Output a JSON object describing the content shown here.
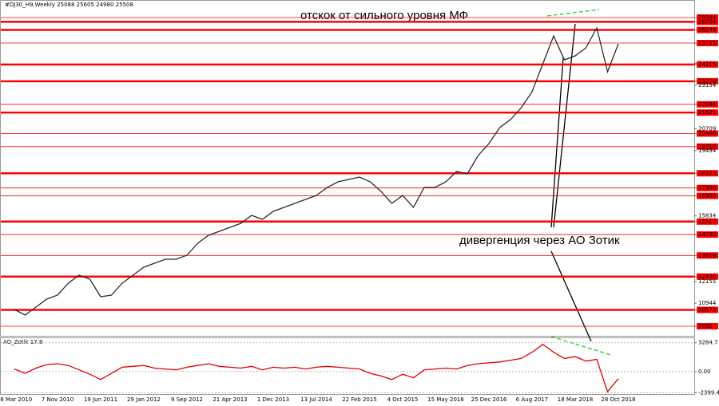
{
  "chart_data": [
    {
      "type": "line",
      "title": "#DJ30_H9,Weekly  25088 25605 24980 25508",
      "annotations": [
        "отскок от сильного уровня МФ",
        "дивергенция через АО Зотик"
      ],
      "categories": [
        "28 Mar 2010",
        null,
        null,
        null,
        "7 Nov 2010",
        null,
        null,
        null,
        "19 Jun 2011",
        null,
        null,
        null,
        "29 Jan 2012",
        null,
        null,
        null,
        "9 Sep 2012",
        null,
        null,
        null,
        "21 Apr 2013",
        null,
        null,
        null,
        "1 Dec 2013",
        null,
        null,
        null,
        "13 Jul 2014",
        null,
        null,
        null,
        "22 Feb 2015",
        null,
        null,
        null,
        "4 Oct 2015",
        null,
        null,
        null,
        "15 May 2016",
        null,
        null,
        null,
        "25 Dec 2016",
        null,
        null,
        null,
        "6 Aug 2017",
        null,
        null,
        null,
        "18 Mar 2018",
        null,
        null,
        null,
        "28 Oct 2018"
      ],
      "values": [
        10595,
        10282,
        10729,
        11175,
        11399,
        12069,
        12516,
        12292,
        11309,
        11399,
        12069,
        12516,
        12962,
        13186,
        13409,
        13409,
        13632,
        14302,
        14749,
        14972,
        15196,
        15419,
        15866,
        15642,
        16089,
        16313,
        16536,
        16759,
        16983,
        17429,
        17742,
        17876,
        18010,
        17742,
        17206,
        16536,
        16983,
        16313,
        17429,
        17429,
        17742,
        18323,
        18189,
        19216,
        19886,
        20780,
        21226,
        21896,
        22790,
        24353,
        25917,
        24576,
        24800,
        25247,
        26363,
        23906,
        25470
      ],
      "color": "#2a2a2a",
      "ylim": [
        9075,
        27480
      ],
      "yticks": [
        26944,
        26704,
        26249,
        25515,
        24384,
        24315,
        23378,
        23154,
        22084,
        21621,
        20709,
        20448,
        19716,
        19494,
        18223,
        17398,
        16956,
        15834,
        15517,
        14790,
        13618,
        12436,
        12155,
        10944,
        10571,
        9656
      ],
      "strong_levels": [
        26704,
        26249,
        24315,
        23378,
        21621,
        18223,
        15517,
        12436,
        10571
      ],
      "weak_levels": [
        26944,
        25515,
        22084,
        20448,
        19716,
        17398,
        16956,
        14790,
        13618,
        9656
      ],
      "level_color": "#ff0000"
    },
    {
      "type": "line",
      "title": "AO_Zotik 17.8",
      "values": [
        300,
        -200,
        400,
        800,
        900,
        700,
        200,
        -300,
        -900,
        -200,
        500,
        600,
        700,
        400,
        300,
        200,
        500,
        700,
        900,
        600,
        500,
        400,
        600,
        200,
        500,
        400,
        500,
        300,
        500,
        600,
        500,
        400,
        300,
        -200,
        -500,
        -900,
        -300,
        -700,
        200,
        300,
        400,
        300,
        700,
        900,
        1000,
        1100,
        1300,
        1500,
        2200,
        3100,
        2200,
        1500,
        1700,
        1200,
        1400,
        -2300,
        -800
      ],
      "color": "#e00000",
      "ylim": [
        -2550,
        3800
      ],
      "yticks": [
        3284.7,
        {
          "value": 0,
          "label": "0.00"
        },
        -2399.4
      ]
    }
  ]
}
